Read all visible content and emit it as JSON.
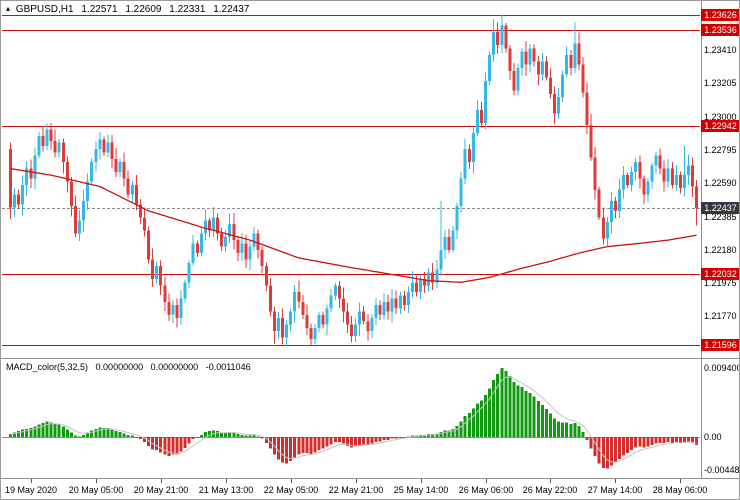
{
  "header": {
    "symbol_period": "GBPUSD,H1",
    "open": "1.22571",
    "high": "1.22609",
    "low": "1.22331",
    "close": "1.22437"
  },
  "icons": {
    "symbol_marker": "▴"
  },
  "indicator": {
    "name": "MACD_color(5,32,5)",
    "value1": "0.00000000",
    "value2": "0.00000000",
    "value3": "-0.0011046",
    "axis_labels": [
      "0.0094008",
      "0.00",
      "-0.0044856"
    ]
  },
  "price_axis": {
    "ticks": [
      "1.23410",
      "1.23205",
      "1.23000",
      "1.22795",
      "1.22590",
      "1.22385",
      "1.22180",
      "1.21975",
      "1.21770"
    ],
    "current_label": "1.22437"
  },
  "time_axis": {
    "labels": [
      {
        "bar": 5,
        "text": "19 May 2020"
      },
      {
        "bar": 21,
        "text": "20 May 05:00"
      },
      {
        "bar": 37,
        "text": "20 May 21:00"
      },
      {
        "bar": 53,
        "text": "21 May 13:00"
      },
      {
        "bar": 69,
        "text": "22 May 05:00"
      },
      {
        "bar": 85,
        "text": "22 May 21:00"
      },
      {
        "bar": 101,
        "text": "25 May 14:00"
      },
      {
        "bar": 117,
        "text": "26 May 06:00"
      },
      {
        "bar": 133,
        "text": "26 May 22:00"
      },
      {
        "bar": 149,
        "text": "27 May 14:00"
      },
      {
        "bar": 165,
        "text": "28 May 06:00"
      }
    ]
  },
  "chart_data": {
    "type": "candlestick",
    "symbol": "GBPUSD",
    "timeframe": "H1",
    "title": "GBPUSD,H1 with MACD_color(5,32,5)",
    "price_range": [
      1.2152,
      1.237
    ],
    "open_first": 1.228,
    "closes": [
      1.2244,
      1.2252,
      1.2246,
      1.2258,
      1.2268,
      1.2262,
      1.2276,
      1.2288,
      1.2282,
      1.2292,
      1.2285,
      1.2278,
      1.2284,
      1.2272,
      1.226,
      1.2245,
      1.2228,
      1.2236,
      1.2248,
      1.226,
      1.2272,
      1.228,
      1.2286,
      1.2278,
      1.2284,
      1.2274,
      1.2266,
      1.2272,
      1.2262,
      1.2252,
      1.2258,
      1.2246,
      1.2238,
      1.223,
      1.2212,
      1.22,
      1.2208,
      1.2196,
      1.2186,
      1.2178,
      1.2184,
      1.2176,
      1.2188,
      1.2198,
      1.221,
      1.2222,
      1.2216,
      1.2228,
      1.2236,
      1.223,
      1.2238,
      1.2228,
      1.222,
      1.2226,
      1.2234,
      1.2224,
      1.2216,
      1.2222,
      1.2212,
      1.222,
      1.2228,
      1.2218,
      1.2208,
      1.2196,
      1.218,
      1.2168,
      1.2176,
      1.2164,
      1.2172,
      1.218,
      1.2192,
      1.2186,
      1.2178,
      1.217,
      1.2163,
      1.217,
      1.2178,
      1.2172,
      1.2182,
      1.219,
      1.2196,
      1.2188,
      1.218,
      1.2172,
      1.2165,
      1.2172,
      1.218,
      1.2174,
      1.2168,
      1.2176,
      1.2184,
      1.2178,
      1.2186,
      1.218,
      1.2188,
      1.2182,
      1.219,
      1.2184,
      1.2192,
      1.2198,
      1.2192,
      1.22,
      1.2196,
      1.2204,
      1.2198,
      1.2206,
      1.2218,
      1.2226,
      1.2218,
      1.223,
      1.2245,
      1.2262,
      1.228,
      1.2272,
      1.229,
      1.2304,
      1.2296,
      1.2322,
      1.2338,
      1.2352,
      1.2344,
      1.2356,
      1.2342,
      1.2328,
      1.2316,
      1.233,
      1.234,
      1.2332,
      1.2342,
      1.2334,
      1.2326,
      1.2334,
      1.2324,
      1.2314,
      1.2302,
      1.2312,
      1.2326,
      1.2338,
      1.233,
      1.2345,
      1.2332,
      1.2315,
      1.2295,
      1.2275,
      1.2255,
      1.2238,
      1.2225,
      1.2235,
      1.2248,
      1.2242,
      1.2255,
      1.2264,
      1.2258,
      1.2266,
      1.2272,
      1.2262,
      1.2252,
      1.226,
      1.227,
      1.2276,
      1.2268,
      1.226,
      1.2268,
      1.2258,
      1.2264,
      1.2256,
      1.2264,
      1.227,
      1.22571,
      1.22437
    ],
    "wick_overrides": {
      "65": [
        null,
        1.216
      ],
      "67": [
        null,
        1.21596
      ],
      "84": [
        null,
        1.2161
      ],
      "106": [
        1.2248,
        null
      ],
      "119": [
        1.236,
        null
      ],
      "121": [
        1.23626,
        null
      ],
      "139": [
        1.2358,
        null
      ],
      "166": [
        1.2282,
        null
      ],
      "169": [
        1.22609,
        1.22331
      ]
    },
    "levels": [
      {
        "price": 1.23626,
        "label": "1.23626"
      },
      {
        "price": 1.23536,
        "label": "1.23536"
      },
      {
        "price": 1.22942,
        "label": "1.22942"
      },
      {
        "price": 1.22032,
        "label": "1.22032"
      },
      {
        "price": 1.21596,
        "label": "1.21596"
      }
    ],
    "current_price": 1.22437,
    "ma_waypoints": [
      [
        0,
        1.2268
      ],
      [
        10,
        1.2264
      ],
      [
        22,
        1.2257
      ],
      [
        34,
        1.2242
      ],
      [
        47,
        1.2232
      ],
      [
        59,
        1.2224
      ],
      [
        71,
        1.2213
      ],
      [
        84,
        1.2207
      ],
      [
        96,
        1.2202
      ],
      [
        103,
        1.2199
      ],
      [
        111,
        1.2198
      ],
      [
        118,
        1.2201
      ],
      [
        125,
        1.2206
      ],
      [
        133,
        1.2211
      ],
      [
        140,
        1.2216
      ],
      [
        147,
        1.222
      ],
      [
        155,
        1.2222
      ],
      [
        162,
        1.2224
      ],
      [
        169,
        1.2227
      ]
    ],
    "macd": {
      "type": "histogram+signal",
      "signal_period": 5,
      "range": [
        -0.0044856,
        0.0094008
      ],
      "values": [
        0.0004,
        0.0006,
        0.0008,
        0.001,
        0.0011,
        0.0012,
        0.0014,
        0.0017,
        0.0019,
        0.0021,
        0.002,
        0.0018,
        0.0017,
        0.0014,
        0.001,
        0.0006,
        0.0002,
        0.0001,
        0.0003,
        0.0006,
        0.0009,
        0.0011,
        0.0013,
        0.0012,
        0.0012,
        0.001,
        0.0008,
        0.0007,
        0.0005,
        0.0003,
        0.0002,
        0.0,
        -0.0003,
        -0.0007,
        -0.0012,
        -0.0017,
        -0.0018,
        -0.0021,
        -0.0024,
        -0.0026,
        -0.0024,
        -0.0024,
        -0.002,
        -0.0015,
        -0.0009,
        -0.0003,
        -0.0001,
        0.0003,
        0.0007,
        0.0008,
        0.0009,
        0.0008,
        0.0006,
        0.0006,
        0.0007,
        0.0006,
        0.0004,
        0.0003,
        0.0002,
        0.0002,
        0.0003,
        0.0001,
        -0.0002,
        -0.0008,
        -0.0016,
        -0.0024,
        -0.0031,
        -0.0035,
        -0.0036,
        -0.0033,
        -0.0028,
        -0.0024,
        -0.0022,
        -0.0022,
        -0.0023,
        -0.0021,
        -0.0018,
        -0.0016,
        -0.0013,
        -0.001,
        -0.0007,
        -0.0007,
        -0.0009,
        -0.0012,
        -0.0014,
        -0.0013,
        -0.0011,
        -0.001,
        -0.001,
        -0.0009,
        -0.0007,
        -0.0006,
        -0.0004,
        -0.0004,
        -0.0002,
        -0.0002,
        0.0,
        0.0,
        0.0001,
        0.0002,
        0.0002,
        0.0003,
        0.0003,
        0.0004,
        0.0004,
        0.0005,
        0.0007,
        0.0009,
        0.0009,
        0.0011,
        0.0015,
        0.0021,
        0.0029,
        0.0033,
        0.0039,
        0.0046,
        0.005,
        0.0057,
        0.0066,
        0.0078,
        0.0086,
        0.0094008,
        0.009,
        0.0083,
        0.0075,
        0.007,
        0.0068,
        0.0063,
        0.006,
        0.0055,
        0.0049,
        0.0044,
        0.0038,
        0.0032,
        0.0025,
        0.0021,
        0.002,
        0.002,
        0.0018,
        0.0019,
        0.0015,
        0.0007,
        -0.0004,
        -0.0016,
        -0.0026,
        -0.0036,
        -0.0042,
        -0.0043,
        -0.0039,
        -0.0035,
        -0.003,
        -0.0025,
        -0.0022,
        -0.0018,
        -0.0014,
        -0.0013,
        -0.0014,
        -0.0013,
        -0.0011,
        -0.0009,
        -0.0008,
        -0.0008,
        -0.0007,
        -0.0008,
        -0.0007,
        -0.0008,
        -0.0007,
        -0.0006,
        -0.0008,
        -0.0011046
      ]
    }
  },
  "colors": {
    "bg": "#ffffff",
    "frame": "#909090",
    "bull": "#33b9e8",
    "bear": "#e03a3a",
    "ma": "#cc1111",
    "level_line": "#c41212",
    "level_badge": "#d40000",
    "current_badge": "#33383e",
    "current_line": "#8a8a8a",
    "macd_up": "#0f9a0f",
    "macd_down": "#d22d2d",
    "macd_signal": "#c4c4c4",
    "zero_line": "#8c8c8c",
    "axis_text": "#000000"
  }
}
